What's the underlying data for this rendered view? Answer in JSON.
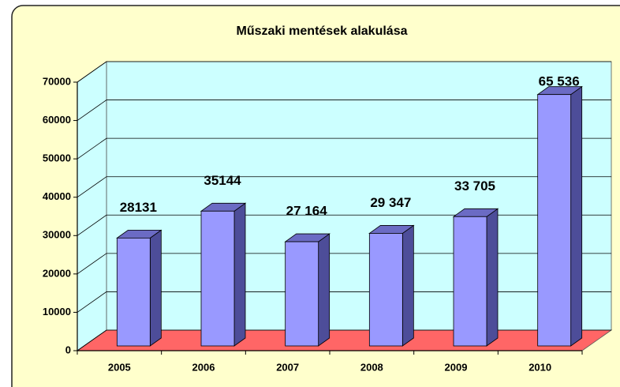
{
  "chart_data": {
    "type": "bar3d",
    "title": "Műszaki mentések alakulása",
    "categories": [
      "2005",
      "2006",
      "2007",
      "2008",
      "2009",
      "2010"
    ],
    "values": [
      28131,
      35144,
      27164,
      29347,
      33705,
      65536
    ],
    "value_labels": [
      "28131",
      "35144",
      "27 164",
      "29 347",
      "33 705",
      "65 536"
    ],
    "color": "#9999ff",
    "ylim": [
      0,
      70000
    ],
    "yticks": [
      0,
      10000,
      20000,
      30000,
      40000,
      50000,
      60000,
      70000
    ],
    "grid": true
  }
}
